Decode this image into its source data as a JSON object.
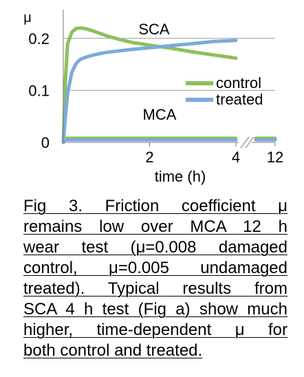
{
  "chart_data": {
    "type": "line",
    "xlabel": "time (h)",
    "ylabel": "μ",
    "x_ticks": [
      "2",
      "4",
      "12"
    ],
    "x_break_between": [
      4,
      11.2
    ],
    "y_ticks": [
      "0",
      "0.1",
      "0.2"
    ],
    "ylim": [
      0,
      0.25
    ],
    "grid": "horizontal",
    "legend": {
      "position": "center-right",
      "entries": [
        "control",
        "treated"
      ]
    },
    "annotations": [
      "SCA",
      "MCA"
    ],
    "colors": {
      "control": "#8dc05a",
      "treated": "#7ea9dc"
    },
    "series": [
      {
        "name": "control",
        "test": "SCA",
        "x": [
          0,
          0.05,
          0.1,
          0.2,
          0.3,
          0.4,
          0.5,
          0.7,
          1.0,
          1.3,
          1.6,
          2.0,
          2.5,
          3.0,
          3.5,
          4.0
        ],
        "y": [
          0,
          0.12,
          0.19,
          0.212,
          0.219,
          0.22,
          0.219,
          0.214,
          0.205,
          0.198,
          0.192,
          0.187,
          0.181,
          0.174,
          0.168,
          0.162
        ]
      },
      {
        "name": "treated",
        "test": "SCA",
        "x": [
          0,
          0.05,
          0.1,
          0.2,
          0.3,
          0.4,
          0.6,
          0.8,
          1.0,
          1.5,
          2.0,
          2.5,
          3.0,
          3.5,
          4.0
        ],
        "y": [
          0,
          0.05,
          0.095,
          0.135,
          0.152,
          0.16,
          0.166,
          0.17,
          0.173,
          0.178,
          0.182,
          0.186,
          0.19,
          0.194,
          0.196
        ]
      },
      {
        "name": "control",
        "test": "MCA",
        "x": [
          0,
          4.0,
          11.2,
          12
        ],
        "y": [
          0.008,
          0.008,
          0.008,
          0.008
        ]
      },
      {
        "name": "treated",
        "test": "MCA",
        "x": [
          0,
          4.0,
          11.2,
          12
        ],
        "y": [
          0.005,
          0.005,
          0.005,
          0.005
        ]
      }
    ]
  },
  "caption": {
    "lines": [
      "Fig 3. Friction coefficient μ",
      "remains low over MCA 12 h",
      "wear test (μ=0.008 damaged",
      "control, μ=0.005 undamaged",
      "treated). Typical results from",
      "SCA 4 h test (Fig a) show much",
      "higher, time-dependent μ for",
      "both control and treated."
    ]
  }
}
